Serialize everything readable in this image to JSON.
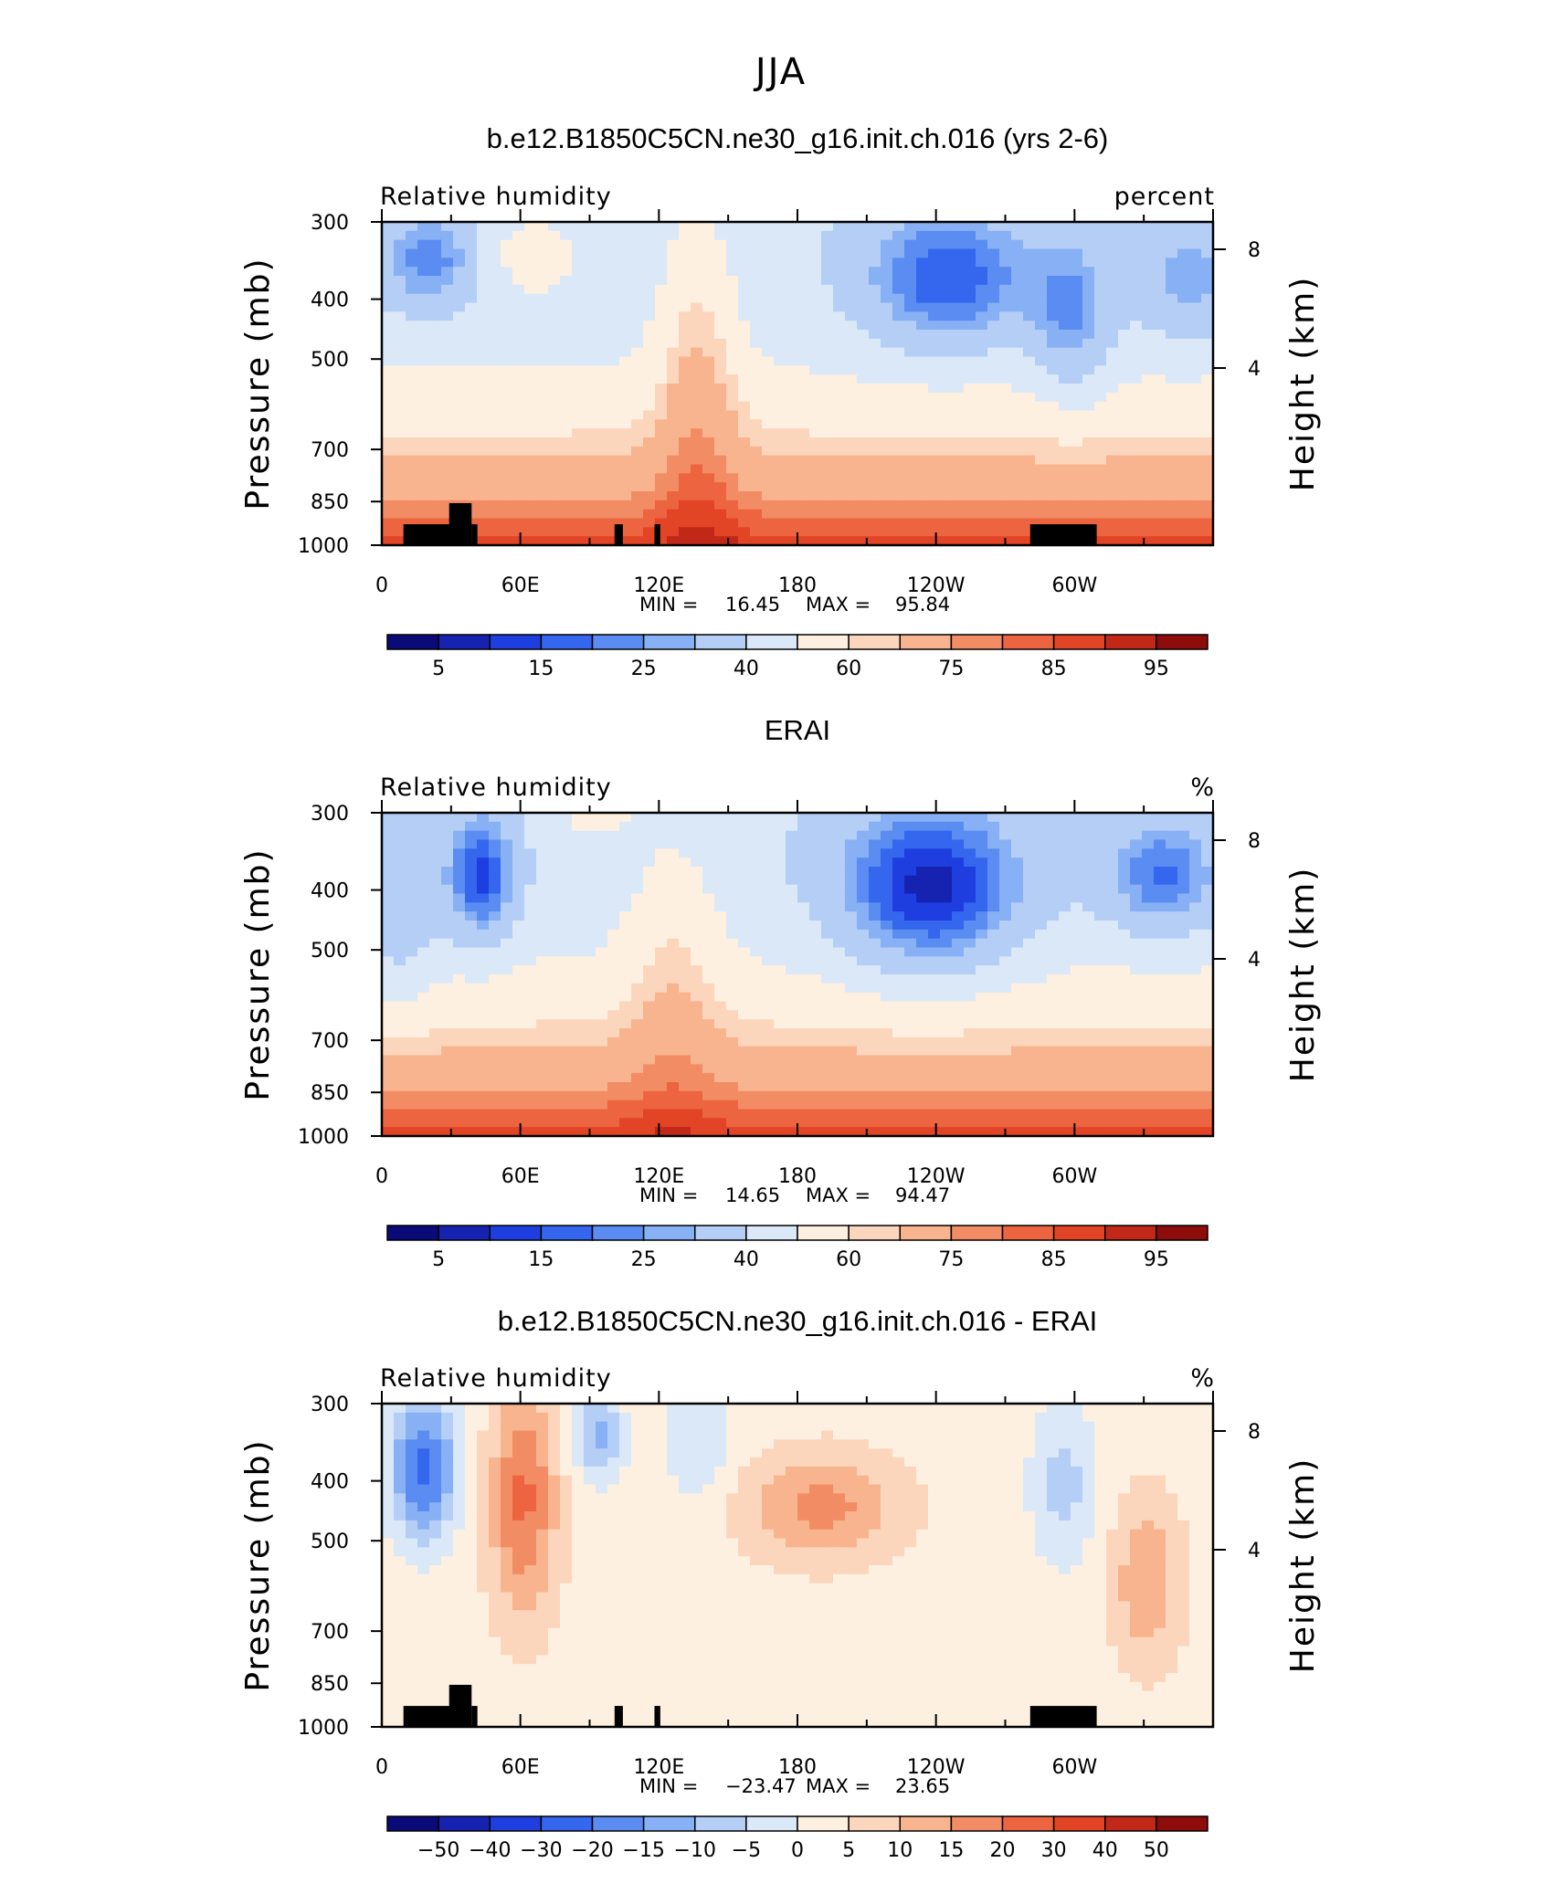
{
  "figure": {
    "title": "JJA"
  },
  "colors": {
    "rh_scale": [
      "#0a0a78",
      "#1622b0",
      "#1e3ee0",
      "#3466ee",
      "#5a8cf2",
      "#88b0f4",
      "#b4cef6",
      "#dae8f8",
      "#fef0e0",
      "#fcd6bc",
      "#f8b48e",
      "#f28c64",
      "#ec6440",
      "#e24426",
      "#c22818",
      "#8e0c0c"
    ],
    "diff_scale": [
      "#0a0a78",
      "#1622b0",
      "#1e3ee0",
      "#3466ee",
      "#5a8cf2",
      "#88b0f4",
      "#b4cef6",
      "#dae8f8",
      "#fef0e0",
      "#fcd6bc",
      "#f8b48e",
      "#f28c64",
      "#ec6440",
      "#e24426",
      "#c22818",
      "#8e0c0c"
    ],
    "topography": "#000000"
  },
  "chart_data": [
    {
      "type": "heatmap",
      "title": "b.e12.B1850C5CN.ne30_g16.init.ch.016 (yrs 2-6)",
      "left_label": "Relative humidity",
      "right_label": "percent",
      "ylabel": "Pressure (mb)",
      "y2label": "Height (km)",
      "x_ticks": [
        "0",
        "60E",
        "120E",
        "180",
        "120W",
        "60W"
      ],
      "y_ticks": [
        "300",
        "400",
        "500",
        "700",
        "850",
        "1000"
      ],
      "y2_ticks": [
        "8",
        "4"
      ],
      "min_label": "MIN =",
      "min_value": "16.45",
      "max_label": "MAX =",
      "max_value": "95.84",
      "colorbar_labels": [
        "5",
        "15",
        "25",
        "40",
        "60",
        "75",
        "85",
        "95"
      ],
      "x_range": [
        0,
        360
      ],
      "y_range": [
        1000,
        300
      ],
      "y_log": true,
      "topography": true
    },
    {
      "type": "heatmap",
      "title": "ERAI",
      "left_label": "Relative humidity",
      "right_label": "%",
      "ylabel": "Pressure (mb)",
      "y2label": "Height (km)",
      "x_ticks": [
        "0",
        "60E",
        "120E",
        "180",
        "120W",
        "60W"
      ],
      "y_ticks": [
        "300",
        "400",
        "500",
        "700",
        "850",
        "1000"
      ],
      "y2_ticks": [
        "8",
        "4"
      ],
      "min_label": "MIN =",
      "min_value": "14.65",
      "max_label": "MAX =",
      "max_value": "94.47",
      "colorbar_labels": [
        "5",
        "15",
        "25",
        "40",
        "60",
        "75",
        "85",
        "95"
      ],
      "x_range": [
        0,
        360
      ],
      "y_range": [
        1000,
        300
      ],
      "y_log": true,
      "topography": false
    },
    {
      "type": "heatmap",
      "title": "b.e12.B1850C5CN.ne30_g16.init.ch.016 - ERAI",
      "left_label": "Relative humidity",
      "right_label": "%",
      "ylabel": "Pressure (mb)",
      "y2label": "Height (km)",
      "x_ticks": [
        "0",
        "60E",
        "120E",
        "180",
        "120W",
        "60W"
      ],
      "y_ticks": [
        "300",
        "400",
        "500",
        "700",
        "850",
        "1000"
      ],
      "y2_ticks": [
        "8",
        "4"
      ],
      "min_label": "MIN =",
      "min_value": "−23.47",
      "max_label": "MAX =",
      "max_value": "23.65",
      "colorbar_labels": [
        "−50",
        "−40",
        "−30",
        "−20",
        "−15",
        "−10",
        "−5",
        "0",
        "5",
        "10",
        "15",
        "20",
        "30",
        "40",
        "50"
      ],
      "x_range": [
        0,
        360
      ],
      "y_range": [
        1000,
        300
      ],
      "y_log": true,
      "topography": true
    }
  ]
}
